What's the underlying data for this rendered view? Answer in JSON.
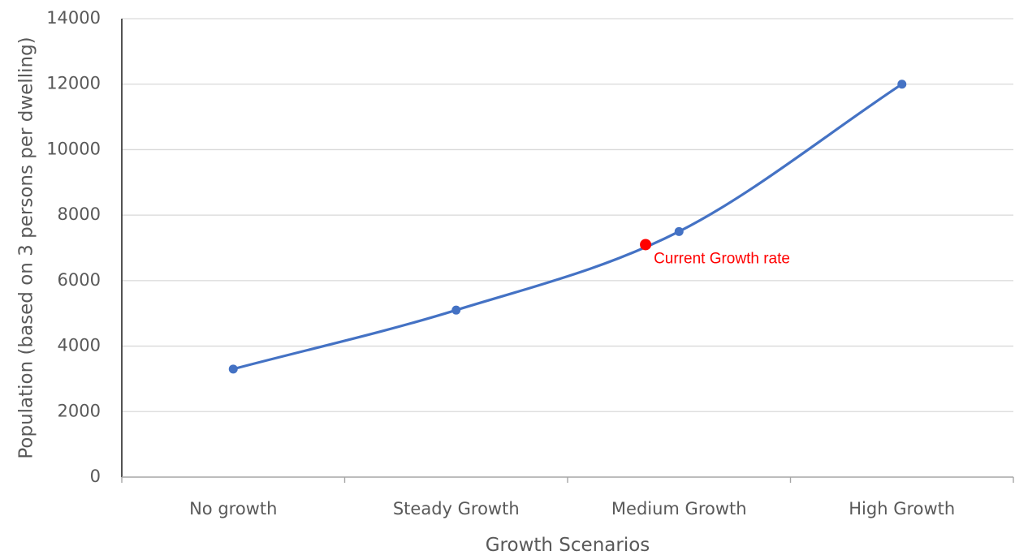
{
  "chart_data": {
    "type": "line",
    "xlabel": "Growth Scenarios",
    "ylabel": "Population (based on 3 persons per dwelling)",
    "categories": [
      "No growth",
      "Steady Growth",
      "Medium Growth",
      "High Growth"
    ],
    "series": [
      {
        "values": [
          3300,
          5100,
          7500,
          12000
        ],
        "color": "#4472C4",
        "smooth": true
      }
    ],
    "ylim": [
      0,
      14000
    ],
    "yticks": [
      0,
      2000,
      4000,
      6000,
      8000,
      10000,
      12000,
      14000
    ],
    "grid": true,
    "annotations": [
      {
        "text": "Current Growth rate",
        "x_position": 2.85,
        "y": 7100,
        "color": "#FF0000"
      }
    ]
  }
}
